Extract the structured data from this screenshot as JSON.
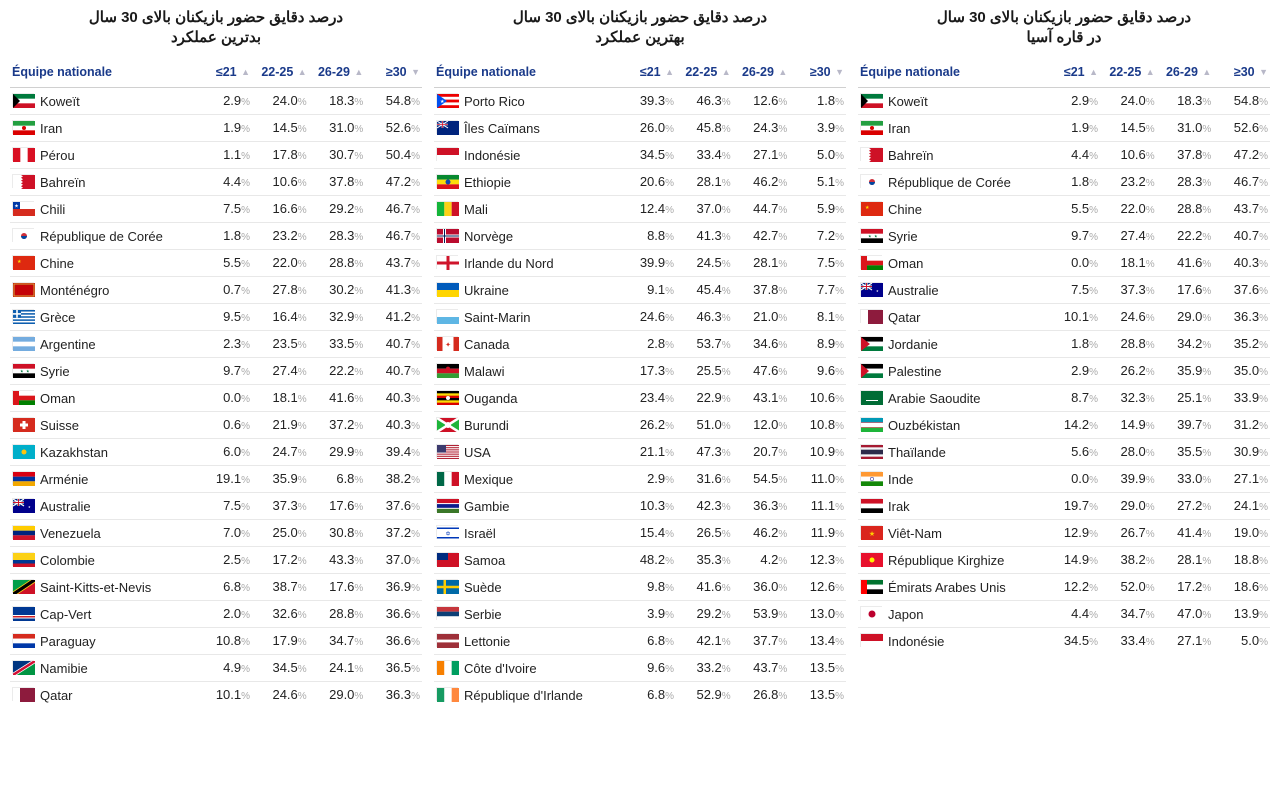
{
  "columns": {
    "team": "Équipe nationale",
    "a": "≤21",
    "b": "22-25",
    "c": "26-29",
    "d": "≥30"
  },
  "panels": [
    {
      "title_line1": "درصد دقایق حضور بازیکنان بالای 30 سال",
      "title_line2": "بدترین عملکرد",
      "rows": [
        {
          "team": "Koweït",
          "flag": "kw",
          "a": "2.9",
          "b": "24.0",
          "c": "18.3",
          "d": "54.8"
        },
        {
          "team": "Iran",
          "flag": "ir",
          "a": "1.9",
          "b": "14.5",
          "c": "31.0",
          "d": "52.6"
        },
        {
          "team": "Pérou",
          "flag": "pe",
          "a": "1.1",
          "b": "17.8",
          "c": "30.7",
          "d": "50.4"
        },
        {
          "team": "Bahreïn",
          "flag": "bh",
          "a": "4.4",
          "b": "10.6",
          "c": "37.8",
          "d": "47.2"
        },
        {
          "team": "Chili",
          "flag": "cl",
          "a": "7.5",
          "b": "16.6",
          "c": "29.2",
          "d": "46.7"
        },
        {
          "team": "République de Corée",
          "flag": "kr",
          "a": "1.8",
          "b": "23.2",
          "c": "28.3",
          "d": "46.7"
        },
        {
          "team": "Chine",
          "flag": "cn",
          "a": "5.5",
          "b": "22.0",
          "c": "28.8",
          "d": "43.7"
        },
        {
          "team": "Monténégro",
          "flag": "me",
          "a": "0.7",
          "b": "27.8",
          "c": "30.2",
          "d": "41.3"
        },
        {
          "team": "Grèce",
          "flag": "gr",
          "a": "9.5",
          "b": "16.4",
          "c": "32.9",
          "d": "41.2"
        },
        {
          "team": "Argentine",
          "flag": "ar",
          "a": "2.3",
          "b": "23.5",
          "c": "33.5",
          "d": "40.7"
        },
        {
          "team": "Syrie",
          "flag": "sy",
          "a": "9.7",
          "b": "27.4",
          "c": "22.2",
          "d": "40.7"
        },
        {
          "team": "Oman",
          "flag": "om",
          "a": "0.0",
          "b": "18.1",
          "c": "41.6",
          "d": "40.3"
        },
        {
          "team": "Suisse",
          "flag": "ch",
          "a": "0.6",
          "b": "21.9",
          "c": "37.2",
          "d": "40.3"
        },
        {
          "team": "Kazakhstan",
          "flag": "kz",
          "a": "6.0",
          "b": "24.7",
          "c": "29.9",
          "d": "39.4"
        },
        {
          "team": "Arménie",
          "flag": "am",
          "a": "19.1",
          "b": "35.9",
          "c": "6.8",
          "d": "38.2"
        },
        {
          "team": "Australie",
          "flag": "au",
          "a": "7.5",
          "b": "37.3",
          "c": "17.6",
          "d": "37.6"
        },
        {
          "team": "Venezuela",
          "flag": "ve",
          "a": "7.0",
          "b": "25.0",
          "c": "30.8",
          "d": "37.2"
        },
        {
          "team": "Colombie",
          "flag": "co",
          "a": "2.5",
          "b": "17.2",
          "c": "43.3",
          "d": "37.0"
        },
        {
          "team": "Saint-Kitts-et-Nevis",
          "flag": "kn",
          "a": "6.8",
          "b": "38.7",
          "c": "17.6",
          "d": "36.9"
        },
        {
          "team": "Cap-Vert",
          "flag": "cv",
          "a": "2.0",
          "b": "32.6",
          "c": "28.8",
          "d": "36.6"
        },
        {
          "team": "Paraguay",
          "flag": "py",
          "a": "10.8",
          "b": "17.9",
          "c": "34.7",
          "d": "36.6"
        },
        {
          "team": "Namibie",
          "flag": "na",
          "a": "4.9",
          "b": "34.5",
          "c": "24.1",
          "d": "36.5"
        },
        {
          "team": "Qatar",
          "flag": "qa",
          "a": "10.1",
          "b": "24.6",
          "c": "29.0",
          "d": "36.3"
        }
      ]
    },
    {
      "title_line1": "درصد دقایق حضور بازیکنان بالای 30 سال",
      "title_line2": "بهترین عملکرد",
      "rows": [
        {
          "team": "Porto Rico",
          "flag": "pr",
          "a": "39.3",
          "b": "46.3",
          "c": "12.6",
          "d": "1.8"
        },
        {
          "team": "Îles Caïmans",
          "flag": "ky",
          "a": "26.0",
          "b": "45.8",
          "c": "24.3",
          "d": "3.9"
        },
        {
          "team": "Indonésie",
          "flag": "id",
          "a": "34.5",
          "b": "33.4",
          "c": "27.1",
          "d": "5.0"
        },
        {
          "team": "Ethiopie",
          "flag": "et",
          "a": "20.6",
          "b": "28.1",
          "c": "46.2",
          "d": "5.1"
        },
        {
          "team": "Mali",
          "flag": "ml",
          "a": "12.4",
          "b": "37.0",
          "c": "44.7",
          "d": "5.9"
        },
        {
          "team": "Norvège",
          "flag": "no",
          "a": "8.8",
          "b": "41.3",
          "c": "42.7",
          "d": "7.2"
        },
        {
          "team": "Irlande du Nord",
          "flag": "gb-nir",
          "a": "39.9",
          "b": "24.5",
          "c": "28.1",
          "d": "7.5"
        },
        {
          "team": "Ukraine",
          "flag": "ua",
          "a": "9.1",
          "b": "45.4",
          "c": "37.8",
          "d": "7.7"
        },
        {
          "team": "Saint-Marin",
          "flag": "sm",
          "a": "24.6",
          "b": "46.3",
          "c": "21.0",
          "d": "8.1"
        },
        {
          "team": "Canada",
          "flag": "ca",
          "a": "2.8",
          "b": "53.7",
          "c": "34.6",
          "d": "8.9"
        },
        {
          "team": "Malawi",
          "flag": "mw",
          "a": "17.3",
          "b": "25.5",
          "c": "47.6",
          "d": "9.6"
        },
        {
          "team": "Ouganda",
          "flag": "ug",
          "a": "23.4",
          "b": "22.9",
          "c": "43.1",
          "d": "10.6"
        },
        {
          "team": "Burundi",
          "flag": "bi",
          "a": "26.2",
          "b": "51.0",
          "c": "12.0",
          "d": "10.8"
        },
        {
          "team": "USA",
          "flag": "us",
          "a": "21.1",
          "b": "47.3",
          "c": "20.7",
          "d": "10.9"
        },
        {
          "team": "Mexique",
          "flag": "mx",
          "a": "2.9",
          "b": "31.6",
          "c": "54.5",
          "d": "11.0"
        },
        {
          "team": "Gambie",
          "flag": "gm",
          "a": "10.3",
          "b": "42.3",
          "c": "36.3",
          "d": "11.1"
        },
        {
          "team": "Israël",
          "flag": "il",
          "a": "15.4",
          "b": "26.5",
          "c": "46.2",
          "d": "11.9"
        },
        {
          "team": "Samoa",
          "flag": "ws",
          "a": "48.2",
          "b": "35.3",
          "c": "4.2",
          "d": "12.3"
        },
        {
          "team": "Suède",
          "flag": "se",
          "a": "9.8",
          "b": "41.6",
          "c": "36.0",
          "d": "12.6"
        },
        {
          "team": "Serbie",
          "flag": "rs",
          "a": "3.9",
          "b": "29.2",
          "c": "53.9",
          "d": "13.0"
        },
        {
          "team": "Lettonie",
          "flag": "lv",
          "a": "6.8",
          "b": "42.1",
          "c": "37.7",
          "d": "13.4"
        },
        {
          "team": "Côte d'Ivoire",
          "flag": "ci",
          "a": "9.6",
          "b": "33.2",
          "c": "43.7",
          "d": "13.5"
        },
        {
          "team": "République d'Irlande",
          "flag": "ie",
          "a": "6.8",
          "b": "52.9",
          "c": "26.8",
          "d": "13.5"
        }
      ]
    },
    {
      "title_line1": "درصد دقایق حضور بازیکنان بالای 30 سال",
      "title_line2": "در قاره آسیا",
      "rows": [
        {
          "team": "Koweït",
          "flag": "kw",
          "a": "2.9",
          "b": "24.0",
          "c": "18.3",
          "d": "54.8"
        },
        {
          "team": "Iran",
          "flag": "ir",
          "a": "1.9",
          "b": "14.5",
          "c": "31.0",
          "d": "52.6"
        },
        {
          "team": "Bahreïn",
          "flag": "bh",
          "a": "4.4",
          "b": "10.6",
          "c": "37.8",
          "d": "47.2"
        },
        {
          "team": "République de Corée",
          "flag": "kr",
          "a": "1.8",
          "b": "23.2",
          "c": "28.3",
          "d": "46.7"
        },
        {
          "team": "Chine",
          "flag": "cn",
          "a": "5.5",
          "b": "22.0",
          "c": "28.8",
          "d": "43.7"
        },
        {
          "team": "Syrie",
          "flag": "sy",
          "a": "9.7",
          "b": "27.4",
          "c": "22.2",
          "d": "40.7"
        },
        {
          "team": "Oman",
          "flag": "om",
          "a": "0.0",
          "b": "18.1",
          "c": "41.6",
          "d": "40.3"
        },
        {
          "team": "Australie",
          "flag": "au",
          "a": "7.5",
          "b": "37.3",
          "c": "17.6",
          "d": "37.6"
        },
        {
          "team": "Qatar",
          "flag": "qa",
          "a": "10.1",
          "b": "24.6",
          "c": "29.0",
          "d": "36.3"
        },
        {
          "team": "Jordanie",
          "flag": "jo",
          "a": "1.8",
          "b": "28.8",
          "c": "34.2",
          "d": "35.2"
        },
        {
          "team": "Palestine",
          "flag": "ps",
          "a": "2.9",
          "b": "26.2",
          "c": "35.9",
          "d": "35.0"
        },
        {
          "team": "Arabie Saoudite",
          "flag": "sa",
          "a": "8.7",
          "b": "32.3",
          "c": "25.1",
          "d": "33.9"
        },
        {
          "team": "Ouzbékistan",
          "flag": "uz",
          "a": "14.2",
          "b": "14.9",
          "c": "39.7",
          "d": "31.2"
        },
        {
          "team": "Thaïlande",
          "flag": "th",
          "a": "5.6",
          "b": "28.0",
          "c": "35.5",
          "d": "30.9"
        },
        {
          "team": "Inde",
          "flag": "in",
          "a": "0.0",
          "b": "39.9",
          "c": "33.0",
          "d": "27.1"
        },
        {
          "team": "Irak",
          "flag": "iq",
          "a": "19.7",
          "b": "29.0",
          "c": "27.2",
          "d": "24.1"
        },
        {
          "team": "Viêt-Nam",
          "flag": "vn",
          "a": "12.9",
          "b": "26.7",
          "c": "41.4",
          "d": "19.0"
        },
        {
          "team": "République Kirghize",
          "flag": "kg",
          "a": "14.9",
          "b": "38.2",
          "c": "28.1",
          "d": "18.8"
        },
        {
          "team": "Émirats Arabes Unis",
          "flag": "ae",
          "a": "12.2",
          "b": "52.0",
          "c": "17.2",
          "d": "18.6"
        },
        {
          "team": "Japon",
          "flag": "jp",
          "a": "4.4",
          "b": "34.7",
          "c": "47.0",
          "d": "13.9"
        },
        {
          "team": "Indonésie",
          "flag": "id",
          "a": "34.5",
          "b": "33.4",
          "c": "27.1",
          "d": "5.0"
        }
      ]
    }
  ]
}
